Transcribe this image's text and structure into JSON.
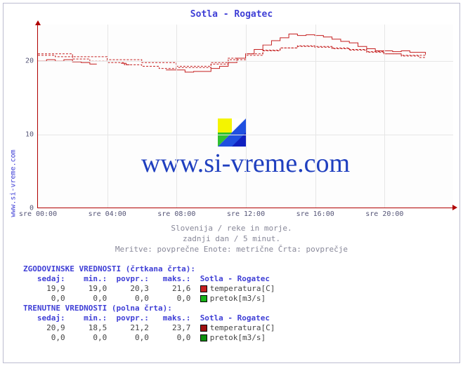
{
  "title": "Sotla - Rogatec",
  "y_axis_label_left": "www.si-vreme.com",
  "watermark": "www.si-vreme.com",
  "subtitle_lines": [
    "Slovenija / reke in morje.",
    "zadnji dan / 5 minut.",
    "Meritve: povprečne  Enote: metrične  Črta: povprečje"
  ],
  "plot": {
    "xlim_hours": [
      0,
      24
    ],
    "ylim": [
      0,
      25
    ],
    "y_ticks": [
      0,
      10,
      20
    ],
    "x_ticks": [
      {
        "h": 0,
        "label": "sre 00:00"
      },
      {
        "h": 4,
        "label": "sre 04:00"
      },
      {
        "h": 8,
        "label": "sre 08:00"
      },
      {
        "h": 12,
        "label": "sre 12:00"
      },
      {
        "h": 16,
        "label": "sre 16:00"
      },
      {
        "h": 20,
        "label": "sre 20:00"
      }
    ],
    "grid_color": "#e6e6e6",
    "axis_color": "#b00000",
    "background_color": "#fdfdfd",
    "series": [
      {
        "name": "temperatura_trenutne",
        "color": "#c52020",
        "width": 1,
        "dash": "",
        "segments": [
          [
            [
              0,
              20.0
            ],
            [
              0.5,
              20.2
            ],
            [
              1,
              20.0
            ],
            [
              1.5,
              20.2
            ],
            [
              2,
              19.9
            ],
            [
              2.5,
              19.8
            ],
            [
              3,
              19.6
            ],
            [
              3.4,
              19.6
            ]
          ],
          [
            [
              4.8,
              19.7
            ],
            [
              5.1,
              19.5
            ],
            [
              5.3,
              19.5
            ]
          ],
          [
            [
              7.4,
              18.8
            ],
            [
              8,
              18.8
            ],
            [
              8.5,
              18.5
            ],
            [
              9,
              18.6
            ],
            [
              9.5,
              18.6
            ],
            [
              10,
              19.0
            ],
            [
              10.5,
              19.3
            ],
            [
              11,
              19.8
            ],
            [
              11.5,
              20.4
            ],
            [
              12,
              21.0
            ],
            [
              12.5,
              21.6
            ],
            [
              13,
              22.2
            ],
            [
              13.5,
              22.8
            ],
            [
              14,
              23.2
            ],
            [
              14.5,
              23.7
            ],
            [
              15,
              23.5
            ],
            [
              15.5,
              23.6
            ],
            [
              16,
              23.5
            ],
            [
              16.5,
              23.3
            ],
            [
              17,
              23.0
            ],
            [
              17.5,
              22.7
            ],
            [
              18,
              22.5
            ],
            [
              18.5,
              22.0
            ],
            [
              19,
              21.7
            ],
            [
              19.5,
              21.4
            ],
            [
              20,
              21.4
            ],
            [
              20.5,
              21.3
            ],
            [
              21,
              21.4
            ],
            [
              21.5,
              21.2
            ],
            [
              22,
              21.2
            ],
            [
              22.4,
              20.9
            ]
          ]
        ]
      },
      {
        "name": "temperatura_zgodovinske",
        "color": "#c52020",
        "width": 1,
        "dash": "3,2",
        "segments": [
          [
            [
              0,
              20.8
            ],
            [
              1,
              20.6
            ],
            [
              2,
              20.3
            ],
            [
              3,
              20.0
            ],
            [
              4,
              19.8
            ],
            [
              5,
              19.5
            ],
            [
              6,
              19.3
            ],
            [
              7,
              19.0
            ],
            [
              8,
              19.1
            ],
            [
              9,
              19.1
            ],
            [
              10,
              19.6
            ],
            [
              11,
              20.2
            ],
            [
              12,
              20.8
            ],
            [
              13,
              21.4
            ],
            [
              14,
              21.8
            ],
            [
              15,
              22.0
            ],
            [
              16,
              21.9
            ],
            [
              17,
              21.7
            ],
            [
              18,
              21.5
            ],
            [
              19,
              21.2
            ],
            [
              20,
              21.0
            ],
            [
              21,
              20.7
            ],
            [
              22,
              20.5
            ],
            [
              22.4,
              20.5
            ]
          ],
          [
            [
              0,
              21.0
            ],
            [
              2,
              20.6
            ],
            [
              4,
              20.2
            ],
            [
              6,
              19.8
            ],
            [
              8,
              19.3
            ],
            [
              9,
              19.3
            ],
            [
              10,
              19.8
            ],
            [
              11,
              20.4
            ],
            [
              12,
              21.0
            ],
            [
              13,
              21.5
            ],
            [
              14,
              21.8
            ],
            [
              15,
              22.1
            ],
            [
              16,
              22.0
            ],
            [
              17,
              21.8
            ],
            [
              18,
              21.6
            ],
            [
              19,
              21.3
            ],
            [
              20,
              21.0
            ],
            [
              21,
              20.8
            ],
            [
              22.4,
              20.8
            ]
          ]
        ]
      }
    ]
  },
  "stats": {
    "columns": [
      "sedaj:",
      "min.:",
      "povpr.:",
      "maks.:"
    ],
    "station": "Sotla - Rogatec",
    "historical": {
      "header": "ZGODOVINSKE VREDNOSTI (črtkana črta):",
      "rows": [
        {
          "vals": [
            "19,9",
            "19,0",
            "20,3",
            "21,6"
          ],
          "swatch": "#c52020",
          "series_label": "temperatura[C]"
        },
        {
          "vals": [
            "0,0",
            "0,0",
            "0,0",
            "0,0"
          ],
          "swatch": "#17b217",
          "series_label": "pretok[m3/s]"
        }
      ]
    },
    "current": {
      "header": "TRENUTNE VREDNOSTI (polna črta):",
      "rows": [
        {
          "vals": [
            "20,9",
            "18,5",
            "21,2",
            "23,7"
          ],
          "swatch": "#a01010",
          "series_label": "temperatura[C]"
        },
        {
          "vals": [
            "0,0",
            "0,0",
            "0,0",
            "0,0"
          ],
          "swatch": "#0d8f0d",
          "series_label": "pretok[m3/s]"
        }
      ]
    }
  }
}
